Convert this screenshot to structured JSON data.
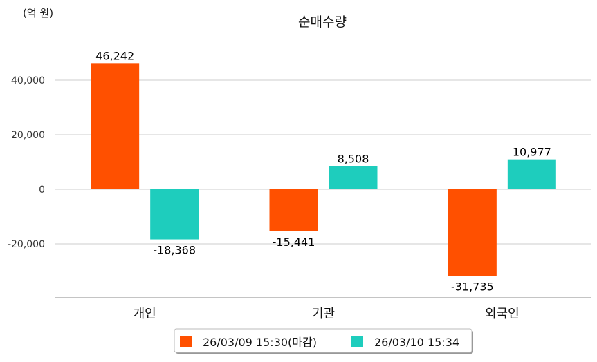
{
  "chart_data": {
    "type": "bar",
    "title": "순매수량",
    "unit_label": "(억 원)",
    "categories": [
      "개인",
      "기관",
      "외국인"
    ],
    "series": [
      {
        "name": "26/03/09 15:30(마감)",
        "color": "#ff5000",
        "values": [
          46242,
          -15441,
          -31735
        ],
        "labels": [
          "46,242",
          "-15,441",
          "-31,735"
        ]
      },
      {
        "name": "26/03/10 15:34",
        "color": "#1ecdbd",
        "values": [
          -18368,
          8508,
          10977
        ],
        "labels": [
          "-18,368",
          "8,508",
          "10,977"
        ]
      }
    ],
    "yticks": [
      40000,
      20000,
      0,
      -20000
    ],
    "ytick_labels": [
      "40,000",
      "20,000",
      "0",
      "-20,000"
    ],
    "ylim": [
      -39300,
      50000
    ],
    "grid": true,
    "legend_position": "bottom-center"
  }
}
